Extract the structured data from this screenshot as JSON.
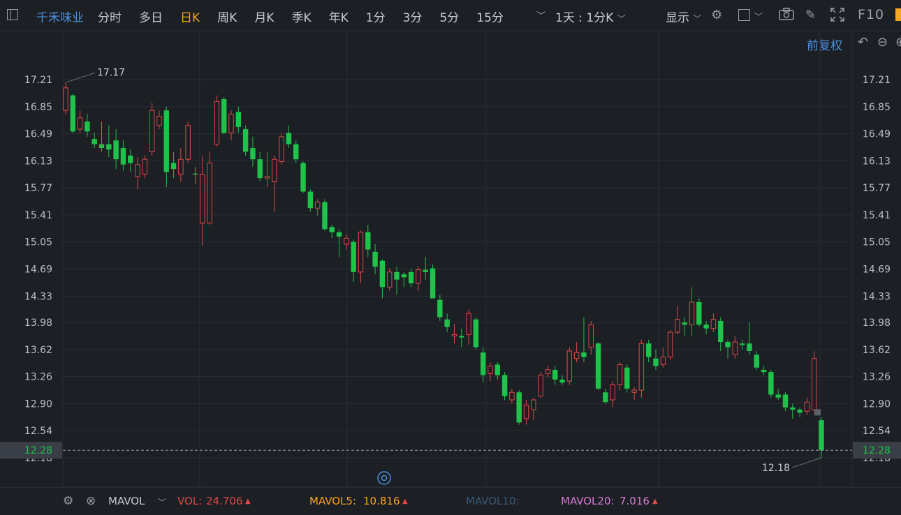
{
  "header": {
    "ticker": "千禾味业",
    "tabs": [
      "分时",
      "多日",
      "日K",
      "周K",
      "月K",
      "季K",
      "年K",
      "1分",
      "3分",
      "5分",
      "15分"
    ],
    "active_tab": "日K",
    "period": "1天 : 1分K",
    "display_label": "显示",
    "f10": "F10"
  },
  "adjust_label": "前复权",
  "accent_colors": {
    "up": "#e04848",
    "down": "#1fc24a",
    "link": "#4a90e2",
    "active": "#f5a623"
  },
  "chart_data": {
    "type": "candlestick",
    "y_ticks": [
      17.21,
      16.85,
      16.49,
      16.13,
      15.77,
      15.41,
      15.05,
      14.69,
      14.33,
      13.98,
      13.62,
      13.26,
      12.9,
      12.54,
      12.18
    ],
    "y_range": [
      12.18,
      17.21
    ],
    "high_label": "17.17",
    "low_label": "12.18",
    "current_price": "12.28",
    "candles": [
      [
        16.8,
        17.1,
        16.75,
        17.17
      ],
      [
        17.0,
        16.52,
        16.5,
        17.02
      ],
      [
        16.55,
        16.7,
        16.5,
        16.8
      ],
      [
        16.65,
        16.52,
        16.45,
        16.75
      ],
      [
        16.42,
        16.35,
        16.3,
        16.5
      ],
      [
        16.35,
        16.3,
        16.25,
        16.65
      ],
      [
        16.35,
        16.28,
        16.18,
        16.6
      ],
      [
        16.4,
        16.15,
        16.02,
        16.55
      ],
      [
        16.3,
        16.08,
        16.0,
        16.4
      ],
      [
        16.2,
        16.1,
        15.98,
        16.28
      ],
      [
        15.92,
        16.08,
        15.75,
        16.18
      ],
      [
        15.95,
        16.15,
        15.9,
        16.2
      ],
      [
        16.25,
        16.8,
        16.2,
        16.9
      ],
      [
        16.6,
        16.72,
        16.55,
        16.8
      ],
      [
        16.8,
        15.98,
        15.78,
        16.85
      ],
      [
        16.1,
        16.02,
        15.9,
        16.25
      ],
      [
        15.95,
        16.15,
        15.85,
        16.3
      ],
      [
        16.15,
        16.6,
        16.1,
        16.65
      ],
      [
        15.96,
        15.95,
        15.82,
        16.05
      ],
      [
        15.3,
        15.95,
        15.0,
        16.2
      ],
      [
        15.3,
        16.1,
        15.28,
        16.25
      ],
      [
        16.35,
        16.92,
        16.32,
        17.0
      ],
      [
        16.95,
        16.5,
        16.48,
        16.98
      ],
      [
        16.5,
        16.75,
        16.4,
        16.8
      ],
      [
        16.78,
        16.58,
        16.5,
        16.85
      ],
      [
        16.55,
        16.25,
        16.2,
        16.6
      ],
      [
        16.3,
        16.15,
        16.05,
        16.45
      ],
      [
        16.15,
        15.9,
        15.86,
        16.25
      ],
      [
        15.9,
        15.92,
        15.78,
        16.25
      ],
      [
        15.85,
        16.15,
        15.45,
        16.2
      ],
      [
        16.12,
        16.45,
        16.08,
        16.5
      ],
      [
        16.5,
        16.35,
        16.3,
        16.6
      ],
      [
        16.35,
        16.15,
        16.1,
        16.4
      ],
      [
        16.1,
        15.72,
        15.7,
        16.12
      ],
      [
        15.72,
        15.5,
        15.45,
        15.75
      ],
      [
        15.5,
        15.58,
        15.4,
        15.62
      ],
      [
        15.58,
        15.22,
        15.2,
        15.62
      ],
      [
        15.25,
        15.18,
        15.1,
        15.28
      ],
      [
        15.18,
        15.12,
        14.85,
        15.22
      ],
      [
        15.02,
        15.1,
        14.95,
        15.15
      ],
      [
        15.05,
        14.65,
        14.52,
        15.08
      ],
      [
        14.65,
        15.18,
        14.5,
        15.2
      ],
      [
        15.18,
        14.95,
        14.85,
        15.28
      ],
      [
        14.92,
        14.72,
        14.62,
        15.02
      ],
      [
        14.8,
        14.45,
        14.3,
        14.82
      ],
      [
        14.45,
        14.65,
        14.4,
        14.7
      ],
      [
        14.65,
        14.55,
        14.35,
        14.72
      ],
      [
        14.62,
        14.58,
        14.45,
        14.65
      ],
      [
        14.65,
        14.5,
        14.45,
        14.7
      ],
      [
        14.5,
        14.68,
        14.4,
        14.72
      ],
      [
        14.68,
        14.65,
        14.55,
        14.85
      ],
      [
        14.7,
        14.3,
        14.3,
        14.75
      ],
      [
        14.28,
        14.05,
        14.0,
        14.35
      ],
      [
        14.02,
        13.92,
        13.85,
        14.1
      ],
      [
        13.8,
        13.82,
        13.7,
        13.96
      ],
      [
        13.8,
        13.78,
        13.65,
        13.9
      ],
      [
        13.82,
        14.1,
        13.68,
        14.15
      ],
      [
        14.02,
        13.65,
        13.62,
        14.05
      ],
      [
        13.58,
        13.28,
        13.18,
        13.65
      ],
      [
        13.3,
        13.4,
        13.2,
        13.45
      ],
      [
        13.42,
        13.28,
        13.22,
        13.45
      ],
      [
        13.28,
        13.0,
        12.95,
        13.32
      ],
      [
        12.95,
        13.05,
        12.9,
        13.1
      ],
      [
        13.05,
        12.65,
        12.62,
        13.08
      ],
      [
        12.7,
        12.88,
        12.62,
        12.95
      ],
      [
        12.82,
        12.95,
        12.68,
        12.98
      ],
      [
        13.0,
        13.28,
        12.98,
        13.32
      ],
      [
        13.3,
        13.35,
        13.25,
        13.4
      ],
      [
        13.35,
        13.22,
        13.15,
        13.4
      ],
      [
        13.22,
        13.18,
        13.15,
        13.28
      ],
      [
        13.2,
        13.6,
        13.15,
        13.65
      ],
      [
        13.5,
        13.58,
        13.45,
        13.72
      ],
      [
        13.58,
        13.52,
        13.45,
        14.05
      ],
      [
        13.65,
        13.95,
        13.55,
        14.0
      ],
      [
        13.7,
        13.1,
        13.08,
        13.72
      ],
      [
        13.05,
        12.92,
        12.9,
        13.1
      ],
      [
        12.95,
        13.15,
        12.85,
        13.2
      ],
      [
        13.15,
        13.42,
        13.08,
        13.45
      ],
      [
        13.38,
        13.1,
        13.05,
        13.42
      ],
      [
        13.05,
        13.08,
        12.95,
        13.12
      ],
      [
        13.08,
        13.7,
        12.98,
        13.75
      ],
      [
        13.7,
        13.52,
        13.45,
        13.75
      ],
      [
        13.5,
        13.4,
        13.35,
        13.62
      ],
      [
        13.42,
        13.52,
        13.38,
        13.65
      ],
      [
        13.52,
        13.85,
        13.48,
        13.88
      ],
      [
        13.85,
        14.02,
        13.82,
        14.2
      ],
      [
        13.98,
        13.95,
        13.8,
        14.05
      ],
      [
        13.95,
        14.25,
        13.8,
        14.45
      ],
      [
        14.25,
        13.95,
        13.92,
        14.3
      ],
      [
        13.95,
        13.9,
        13.82,
        14.0
      ],
      [
        13.9,
        14.02,
        13.85,
        14.1
      ],
      [
        14.0,
        13.72,
        13.6,
        14.05
      ],
      [
        13.72,
        13.65,
        13.5,
        13.75
      ],
      [
        13.55,
        13.72,
        13.5,
        13.8
      ],
      [
        13.7,
        13.68,
        13.62,
        13.75
      ],
      [
        13.7,
        13.6,
        13.55,
        13.98
      ],
      [
        13.55,
        13.38,
        13.35,
        13.6
      ],
      [
        13.35,
        13.32,
        13.28,
        13.4
      ],
      [
        13.32,
        13.02,
        12.98,
        13.35
      ],
      [
        13.02,
        12.98,
        12.95,
        13.1
      ],
      [
        13.02,
        12.85,
        12.8,
        13.05
      ],
      [
        12.85,
        12.82,
        12.7,
        12.9
      ],
      [
        12.82,
        12.78,
        12.72,
        12.85
      ],
      [
        12.8,
        12.92,
        12.75,
        12.98
      ],
      [
        12.82,
        13.5,
        12.78,
        13.6
      ],
      [
        12.68,
        12.28,
        12.18,
        12.72
      ]
    ]
  },
  "indicator": {
    "name": "MAVOL",
    "vol_label": "VOL:",
    "vol_value": "24.706",
    "mavol5_label": "MAVOL5:",
    "mavol5_value": "10.816",
    "mavol10_label": "MAVOL10:",
    "mavol20_label": "MAVOL20:",
    "mavol20_value": "7.016",
    "up_arrow": "▲"
  }
}
